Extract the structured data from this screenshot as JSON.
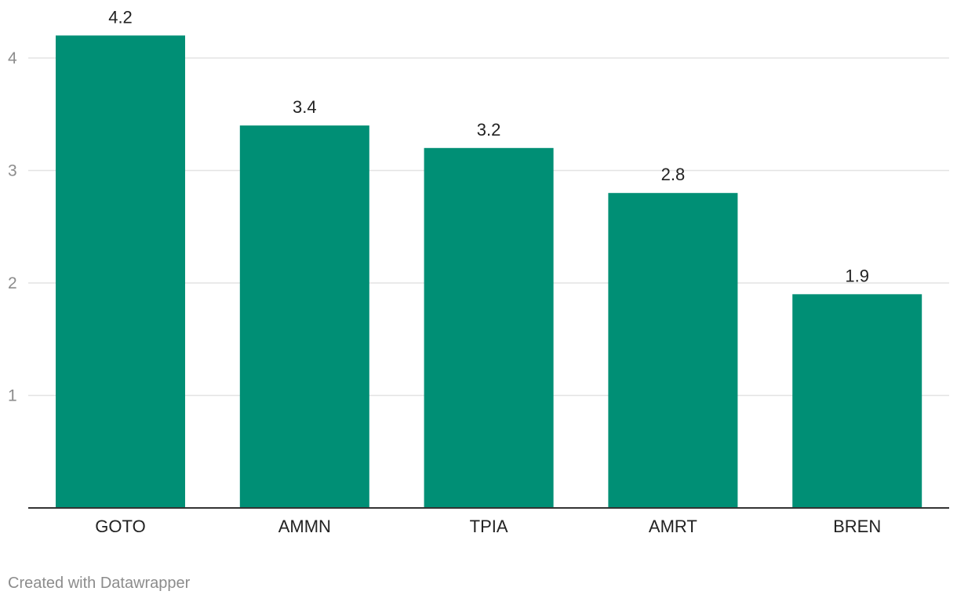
{
  "chart_data": {
    "type": "bar",
    "categories": [
      "GOTO",
      "AMMN",
      "TPIA",
      "AMRT",
      "BREN"
    ],
    "values": [
      4.2,
      3.4,
      3.2,
      2.8,
      1.9
    ],
    "value_labels": [
      "4.2",
      "3.4",
      "3.2",
      "2.8",
      "1.9"
    ],
    "title": "",
    "xlabel": "",
    "ylabel": "",
    "ylim": [
      0,
      4.5
    ],
    "yticks": [
      1,
      2,
      3,
      4
    ],
    "ytick_labels": [
      "1",
      "2",
      "3",
      "4"
    ],
    "grid": true,
    "colors": {
      "bar": "#008f75",
      "grid": "#e3e3e3",
      "baseline": "#333333",
      "tick_label": "#8c8c8c",
      "category_label": "#222222",
      "value_label": "#222222"
    }
  },
  "footer": {
    "credit": "Created with Datawrapper"
  }
}
